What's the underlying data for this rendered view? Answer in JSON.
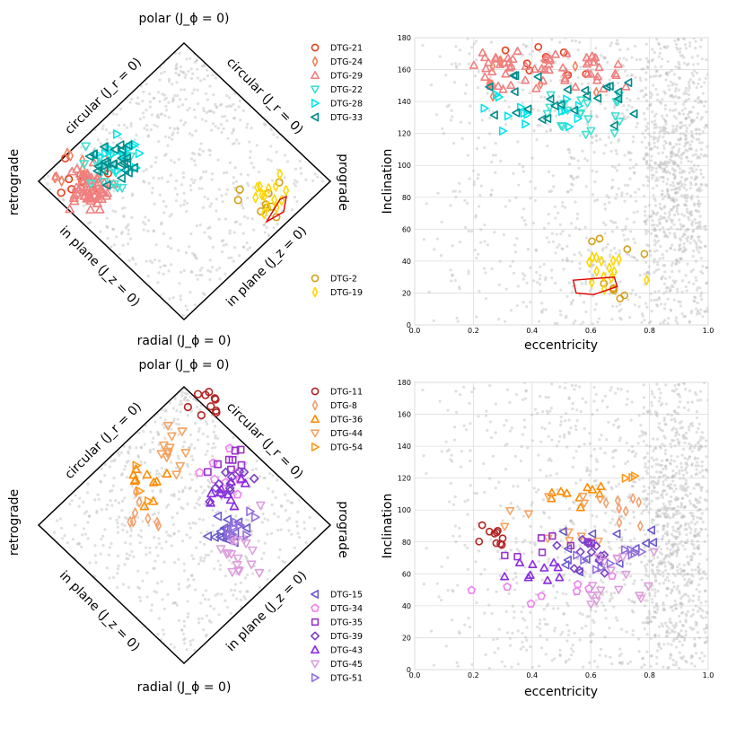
{
  "chart_data": [
    {
      "type": "scatter",
      "panel": "top-left",
      "projection": "action diamond",
      "labels": {
        "top": "polar (J_ϕ = 0)",
        "bottom": "radial (J_ϕ = 0)",
        "left": "retrograde",
        "right": "prograde",
        "upper_left_edge": "circular (J_r = 0)",
        "upper_right_edge": "circular (J_r = 0)",
        "lower_left_edge": "in plane (J_z = 0)",
        "lower_right_edge": "in plane (J_z = 0)"
      },
      "legends": [
        {
          "position": "top-right",
          "entries": [
            {
              "name": "DTG-21",
              "color": "#e8401c",
              "marker": "circle"
            },
            {
              "name": "DTG-24",
              "color": "#f0845e",
              "marker": "thin_diamond"
            },
            {
              "name": "DTG-29",
              "color": "#f08080",
              "marker": "triangle_up"
            },
            {
              "name": "DTG-22",
              "color": "#40e0d0",
              "marker": "triangle_down"
            },
            {
              "name": "DTG-28",
              "color": "#00e5ee",
              "marker": "triangle_right"
            },
            {
              "name": "DTG-33",
              "color": "#008b8b",
              "marker": "triangle_left"
            }
          ]
        },
        {
          "position": "bottom-right",
          "entries": [
            {
              "name": "DTG-2",
              "color": "#d4a017",
              "marker": "circle"
            },
            {
              "name": "DTG-19",
              "color": "#ffd700",
              "marker": "thin_diamond"
            }
          ]
        }
      ],
      "clusters_xy": {
        "description": "x = (Jphi)/Jtot from -1 (retrograde) to +1 (prograde), y = (Jz - Jr)/Jtot from -1 (radial) to +1 (polar)",
        "DTG-21": {
          "center": [
            -0.72,
            0.05
          ],
          "n": 8
        },
        "DTG-24": {
          "center": [
            -0.7,
            0.12
          ],
          "n": 10
        },
        "DTG-29": {
          "center": [
            -0.68,
            -0.05
          ],
          "n": 60
        },
        "DTG-22": {
          "center": [
            -0.55,
            0.1
          ],
          "n": 20
        },
        "DTG-28": {
          "center": [
            -0.45,
            0.2
          ],
          "n": 15
        },
        "DTG-33": {
          "center": [
            -0.5,
            0.15
          ],
          "n": 25
        },
        "DTG-2": {
          "center": [
            0.55,
            -0.17
          ],
          "n": 10
        },
        "DTG-19": {
          "center": [
            0.6,
            -0.12
          ],
          "n": 14
        }
      }
    },
    {
      "type": "scatter",
      "panel": "top-right",
      "xlabel": "eccentricity",
      "ylabel": "Inclination",
      "xlim": [
        0.0,
        1.0
      ],
      "ylim": [
        0,
        180
      ],
      "xticks": [
        "0.0",
        "0.2",
        "0.4",
        "0.6",
        "0.8",
        "1.0"
      ],
      "yticks": [
        "0",
        "20",
        "40",
        "60",
        "80",
        "100",
        "120",
        "140",
        "160",
        "180"
      ],
      "grid": true,
      "clusters": {
        "DTG-21": {
          "ecc": [
            0.3,
            0.68
          ],
          "inc": [
            155,
            175
          ]
        },
        "DTG-24": {
          "ecc": [
            0.25,
            0.65
          ],
          "inc": [
            140,
            170
          ]
        },
        "DTG-29": {
          "ecc": [
            0.2,
            0.72
          ],
          "inc": [
            145,
            172
          ]
        },
        "DTG-22": {
          "ecc": [
            0.45,
            0.7
          ],
          "inc": [
            118,
            148
          ]
        },
        "DTG-28": {
          "ecc": [
            0.17,
            0.62
          ],
          "inc": [
            118,
            145
          ]
        },
        "DTG-33": {
          "ecc": [
            0.25,
            0.75
          ],
          "inc": [
            120,
            158
          ]
        },
        "DTG-2": {
          "ecc": [
            0.6,
            0.8
          ],
          "inc": [
            15,
            55
          ]
        },
        "DTG-19": {
          "ecc": [
            0.58,
            0.83
          ],
          "inc": [
            15,
            52
          ]
        }
      }
    },
    {
      "type": "scatter",
      "panel": "bottom-left",
      "projection": "action diamond",
      "labels": {
        "top": "polar (J_ϕ = 0)",
        "bottom": "radial (J_ϕ = 0)",
        "left": "retrograde",
        "right": "prograde",
        "upper_left_edge": "circular (J_r = 0)",
        "upper_right_edge": "circular (J_r = 0)",
        "lower_left_edge": "in plane (J_z = 0)",
        "lower_right_edge": "in plane (J_z = 0)"
      },
      "legends": [
        {
          "position": "top-right",
          "entries": [
            {
              "name": "DTG-11",
              "color": "#b22222",
              "marker": "circle"
            },
            {
              "name": "DTG-8",
              "color": "#f4a070",
              "marker": "thin_diamond"
            },
            {
              "name": "DTG-36",
              "color": "#ff8c00",
              "marker": "triangle_up"
            },
            {
              "name": "DTG-44",
              "color": "#f4a460",
              "marker": "triangle_down"
            },
            {
              "name": "DTG-54",
              "color": "#ff9a1a",
              "marker": "triangle_right"
            }
          ]
        },
        {
          "position": "bottom-right",
          "entries": [
            {
              "name": "DTG-15",
              "color": "#6a5acd",
              "marker": "triangle_left"
            },
            {
              "name": "DTG-34",
              "color": "#ee82ee",
              "marker": "pentagon"
            },
            {
              "name": "DTG-35",
              "color": "#9932cc",
              "marker": "square"
            },
            {
              "name": "DTG-39",
              "color": "#7b3fc8",
              "marker": "diamond"
            },
            {
              "name": "DTG-43",
              "color": "#8a2be2",
              "marker": "triangle_up"
            },
            {
              "name": "DTG-45",
              "color": "#dda0dd",
              "marker": "triangle_down"
            },
            {
              "name": "DTG-51",
              "color": "#9370db",
              "marker": "triangle_right"
            }
          ]
        }
      ],
      "clusters_xy": {
        "DTG-11": {
          "center": [
            0.12,
            0.88
          ],
          "n": 10
        },
        "DTG-8": {
          "center": [
            -0.3,
            0.1
          ],
          "n": 8
        },
        "DTG-36": {
          "center": [
            -0.28,
            0.3
          ],
          "n": 10
        },
        "DTG-44": {
          "center": [
            -0.12,
            0.55
          ],
          "n": 12
        },
        "DTG-54": {
          "center": [
            -0.35,
            0.25
          ],
          "n": 3
        },
        "DTG-15": {
          "center": [
            0.3,
            -0.05
          ],
          "n": 15
        },
        "DTG-34": {
          "center": [
            0.35,
            0.35
          ],
          "n": 8
        },
        "DTG-35": {
          "center": [
            0.3,
            0.45
          ],
          "n": 8
        },
        "DTG-39": {
          "center": [
            0.3,
            0.3
          ],
          "n": 12
        },
        "DTG-43": {
          "center": [
            0.28,
            0.2
          ],
          "n": 10
        },
        "DTG-45": {
          "center": [
            0.38,
            -0.2
          ],
          "n": 18
        },
        "DTG-51": {
          "center": [
            0.4,
            0.0
          ],
          "n": 10
        }
      }
    },
    {
      "type": "scatter",
      "panel": "bottom-right",
      "xlabel": "eccentricity",
      "ylabel": "Inclination",
      "xlim": [
        0.0,
        1.0
      ],
      "ylim": [
        0,
        180
      ],
      "xticks": [
        "0.0",
        "0.2",
        "0.4",
        "0.6",
        "0.8",
        "1.0"
      ],
      "yticks": [
        "0",
        "20",
        "40",
        "60",
        "80",
        "100",
        "120",
        "140",
        "160",
        "180"
      ],
      "grid": true,
      "clusters": {
        "DTG-11": {
          "ecc": [
            0.19,
            0.3
          ],
          "inc": [
            78,
            92
          ]
        },
        "DTG-8": {
          "ecc": [
            0.65,
            0.78
          ],
          "inc": [
            88,
            112
          ]
        },
        "DTG-36": {
          "ecc": [
            0.45,
            0.68
          ],
          "inc": [
            100,
            115
          ]
        },
        "DTG-44": {
          "ecc": [
            0.3,
            0.7
          ],
          "inc": [
            80,
            110
          ]
        },
        "DTG-54": {
          "ecc": [
            0.7,
            0.75
          ],
          "inc": [
            115,
            125
          ]
        },
        "DTG-15": {
          "ecc": [
            0.5,
            0.82
          ],
          "inc": [
            60,
            90
          ]
        },
        "DTG-34": {
          "ecc": [
            0.18,
            0.8
          ],
          "inc": [
            40,
            65
          ]
        },
        "DTG-35": {
          "ecc": [
            0.26,
            0.62
          ],
          "inc": [
            68,
            85
          ]
        },
        "DTG-39": {
          "ecc": [
            0.45,
            0.7
          ],
          "inc": [
            60,
            82
          ]
        },
        "DTG-43": {
          "ecc": [
            0.3,
            0.5
          ],
          "inc": [
            55,
            70
          ]
        },
        "DTG-45": {
          "ecc": [
            0.6,
            0.85
          ],
          "inc": [
            40,
            75
          ]
        },
        "DTG-51": {
          "ecc": [
            0.55,
            0.82
          ],
          "inc": [
            55,
            78
          ]
        }
      }
    }
  ]
}
